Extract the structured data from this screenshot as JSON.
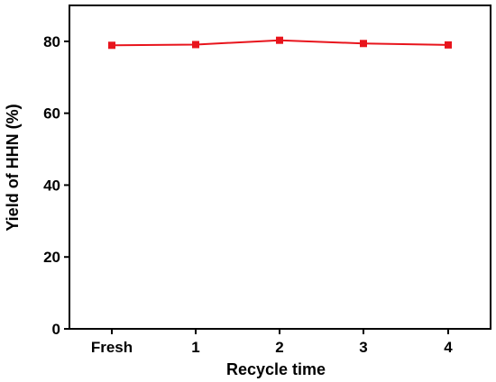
{
  "chart_data": {
    "type": "line",
    "title": "",
    "xlabel": "Recycle time",
    "ylabel": "Yield of HHN (%)",
    "categories": [
      "Fresh",
      "1",
      "2",
      "3",
      "4"
    ],
    "series": [
      {
        "values": [
          78.9,
          79.1,
          80.3,
          79.4,
          79.0
        ],
        "color": "#e8141c",
        "marker": "square"
      }
    ],
    "ylim": [
      0,
      90
    ],
    "yticks": [
      0,
      20,
      40,
      60,
      80
    ],
    "grid": false,
    "legend": "none"
  }
}
